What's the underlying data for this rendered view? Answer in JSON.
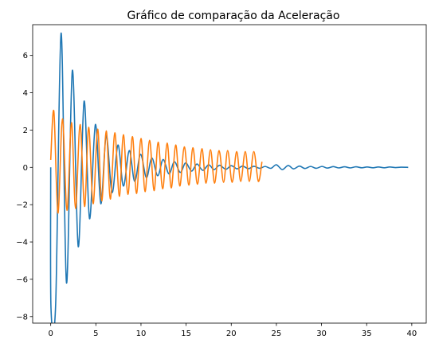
{
  "chart_data": {
    "type": "line",
    "title": "Gráfico de comparação da Aceleração",
    "xlabel": "",
    "ylabel": "",
    "xlim": [
      -2,
      41.6
    ],
    "ylim": [
      -8.35,
      7.65
    ],
    "xticks": [
      0,
      5,
      10,
      15,
      20,
      25,
      30,
      35,
      40
    ],
    "yticks": [
      -8,
      -6,
      -4,
      -2,
      0,
      2,
      4,
      6
    ],
    "grid": false,
    "legend": "none",
    "series": [
      {
        "color": "#1f77b4",
        "x_end": 39.6,
        "x": [
          0,
          0.03,
          0.55,
          1.15,
          1.75,
          2.4,
          3.05,
          3.7,
          4.3,
          4.95,
          5.55,
          6.15,
          6.8,
          7.45,
          8.05,
          8.7,
          9.3,
          9.95,
          10.6,
          11.2,
          11.85,
          12.45,
          13.1,
          13.7,
          14.35,
          14.95,
          15.6,
          16.2,
          16.85,
          17.5,
          18.1,
          18.7,
          19.4,
          20.0,
          20.65,
          21.25,
          21.9,
          22.5,
          23.15,
          23.75,
          24.4,
          25.0,
          25.65,
          26.3,
          26.9,
          27.55,
          28.15,
          28.8,
          29.4,
          30.05,
          30.65,
          31.3,
          31.9,
          32.55,
          33.2,
          33.8,
          34.45,
          35.05,
          35.7,
          36.3,
          36.95,
          37.55,
          38.2,
          38.8,
          39.6
        ],
        "y": [
          0,
          -7.55,
          -7.3,
          7.2,
          -6.2,
          5.2,
          -4.25,
          3.55,
          -2.75,
          2.3,
          -1.95,
          1.7,
          -1.35,
          1.2,
          -1.0,
          0.9,
          -0.75,
          0.7,
          -0.55,
          0.5,
          -0.45,
          0.42,
          -0.35,
          0.3,
          -0.27,
          0.24,
          -0.2,
          0.18,
          -0.16,
          0.14,
          -0.12,
          0.11,
          -0.1,
          0.09,
          -0.08,
          0.07,
          -0.07,
          0.06,
          -0.05,
          0.05,
          -0.05,
          0.14,
          -0.12,
          0.1,
          -0.08,
          0.07,
          -0.06,
          0.05,
          -0.05,
          0.05,
          -0.04,
          0.04,
          -0.03,
          0.03,
          -0.03,
          0.03,
          -0.02,
          0.02,
          -0.02,
          0.02,
          -0.02,
          0.02,
          -0.01,
          0.01,
          0.0
        ]
      },
      {
        "color": "#ff7f0e",
        "x_start": 0,
        "x_end": 23.4,
        "y_start": 0.4,
        "x": [
          0,
          0.35,
          0.8,
          1.3,
          1.8,
          2.3,
          2.75,
          3.25,
          3.75,
          4.2,
          4.7,
          5.2,
          5.65,
          6.15,
          6.6,
          7.1,
          7.6,
          8.05,
          8.55,
          9.05,
          9.5,
          10.0,
          10.45,
          10.95,
          11.45,
          11.9,
          12.4,
          12.9,
          13.35,
          13.85,
          14.3,
          14.8,
          15.3,
          15.75,
          16.25,
          16.75,
          17.2,
          17.7,
          18.15,
          18.65,
          19.15,
          19.6,
          20.1,
          20.6,
          21.05,
          21.55,
          22.0,
          22.5,
          23.0,
          23.4
        ],
        "y": [
          0.4,
          3.0,
          -2.45,
          2.6,
          -2.3,
          2.4,
          -2.2,
          2.3,
          -2.1,
          2.15,
          -1.95,
          2.05,
          -1.8,
          1.95,
          -1.7,
          1.85,
          -1.55,
          1.75,
          -1.45,
          1.65,
          -1.4,
          1.55,
          -1.3,
          1.45,
          -1.25,
          1.35,
          -1.15,
          1.3,
          -1.1,
          1.2,
          -1.0,
          1.1,
          -0.95,
          1.05,
          -0.9,
          1.0,
          -0.85,
          0.95,
          -0.85,
          0.9,
          -0.8,
          0.9,
          -0.8,
          0.85,
          -0.75,
          0.85,
          -0.75,
          0.85,
          -0.75,
          0.3
        ]
      }
    ]
  }
}
